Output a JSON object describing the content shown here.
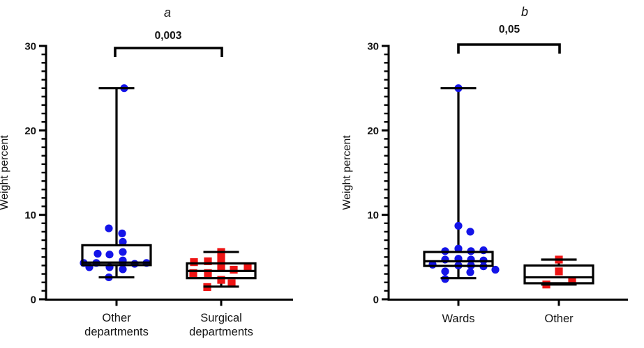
{
  "colors": {
    "blue": "#1414e8",
    "red": "#ee1414",
    "axis": "#000000",
    "text": "#141414"
  },
  "chart_data": [
    {
      "type": "box-scatter",
      "panel_label": "a",
      "significance_label": "0,003",
      "ylabel": "Weight percent",
      "ylim": [
        0,
        30
      ],
      "yticks": [
        0,
        10,
        20,
        30
      ],
      "ytick_labels": [
        "0",
        "10",
        "20",
        "30"
      ],
      "minor_tick_step": 1,
      "grid": false,
      "legend": "none",
      "categories": [
        [
          "Other",
          "departments"
        ],
        [
          "Surgical",
          "departments"
        ]
      ],
      "series": [
        {
          "name": "Other departments",
          "marker": "circle",
          "color": "#1414e8",
          "box": {
            "q1": 4.05,
            "median": 4.35,
            "q3": 6.4,
            "whisker_low": 2.6,
            "whisker_high": 25
          },
          "points": [
            {
              "v": 25,
              "dx": 11
            },
            {
              "v": 8.4,
              "dx": -11
            },
            {
              "v": 7.8,
              "dx": 8
            },
            {
              "v": 6.8,
              "dx": 9
            },
            {
              "v": 5.6,
              "dx": 9
            },
            {
              "v": 5.4,
              "dx": -27
            },
            {
              "v": 5.3,
              "dx": -10
            },
            {
              "v": 4.6,
              "dx": 9
            },
            {
              "v": 4.4,
              "dx": 9
            },
            {
              "v": 4.3,
              "dx": -47
            },
            {
              "v": 4.3,
              "dx": -29
            },
            {
              "v": 4.2,
              "dx": 26
            },
            {
              "v": 4.3,
              "dx": 43
            },
            {
              "v": 3.8,
              "dx": -39
            },
            {
              "v": 3.8,
              "dx": -10
            },
            {
              "v": 3.55,
              "dx": 9
            },
            {
              "v": 2.6,
              "dx": -11
            }
          ]
        },
        {
          "name": "Surgical departments",
          "marker": "square",
          "color": "#ee1414",
          "box": {
            "q1": 2.5,
            "median": 3.35,
            "q3": 4.25,
            "whisker_low": 1.5,
            "whisker_high": 5.6
          },
          "points": [
            {
              "v": 5.6,
              "dx": 0
            },
            {
              "v": 4.7,
              "dx": 0
            },
            {
              "v": 4.5,
              "dx": -19
            },
            {
              "v": 4.4,
              "dx": -39
            },
            {
              "v": 3.9,
              "dx": 0
            },
            {
              "v": 3.7,
              "dx": 38
            },
            {
              "v": 3.5,
              "dx": 18
            },
            {
              "v": 3.1,
              "dx": -40
            },
            {
              "v": 3.1,
              "dx": -19
            },
            {
              "v": 2.3,
              "dx": 0
            },
            {
              "v": 1.9,
              "dx": 15
            },
            {
              "v": 1.45,
              "dx": -20
            }
          ]
        }
      ]
    },
    {
      "type": "box-scatter",
      "panel_label": "b",
      "significance_label": "0,05",
      "ylabel": "Weight percent",
      "ylim": [
        0,
        30
      ],
      "yticks": [
        0,
        10,
        20,
        30
      ],
      "ytick_labels": [
        "0",
        "10",
        "20",
        "30"
      ],
      "minor_tick_step": 1,
      "grid": false,
      "legend": "none",
      "categories": [
        [
          "Wards"
        ],
        [
          "Other"
        ]
      ],
      "series": [
        {
          "name": "Wards",
          "marker": "circle",
          "color": "#1414e8",
          "box": {
            "q1": 3.95,
            "median": 4.5,
            "q3": 5.6,
            "whisker_low": 2.5,
            "whisker_high": 25
          },
          "points": [
            {
              "v": 25,
              "dx": 0
            },
            {
              "v": 8.7,
              "dx": 0
            },
            {
              "v": 8.0,
              "dx": 17
            },
            {
              "v": 6.0,
              "dx": 0
            },
            {
              "v": 5.7,
              "dx": -19
            },
            {
              "v": 5.7,
              "dx": 18
            },
            {
              "v": 5.8,
              "dx": 36
            },
            {
              "v": 4.8,
              "dx": 0
            },
            {
              "v": 4.7,
              "dx": -19
            },
            {
              "v": 4.7,
              "dx": 18
            },
            {
              "v": 4.6,
              "dx": 36
            },
            {
              "v": 4.1,
              "dx": -37
            },
            {
              "v": 4.0,
              "dx": 0
            },
            {
              "v": 4.0,
              "dx": 18
            },
            {
              "v": 3.9,
              "dx": 36
            },
            {
              "v": 3.5,
              "dx": 53
            },
            {
              "v": 3.3,
              "dx": -19
            },
            {
              "v": 3.2,
              "dx": 17
            },
            {
              "v": 2.4,
              "dx": -19
            }
          ]
        },
        {
          "name": "Other",
          "marker": "square",
          "color": "#ee1414",
          "box": {
            "q1": 1.9,
            "median": 2.6,
            "q3": 4.0,
            "whisker_low": 1.75,
            "whisker_high": 4.7
          },
          "points": [
            {
              "v": 4.7,
              "dx": 0
            },
            {
              "v": 3.3,
              "dx": 0
            },
            {
              "v": 2.2,
              "dx": 19
            },
            {
              "v": 1.75,
              "dx": -18
            }
          ]
        }
      ]
    }
  ]
}
